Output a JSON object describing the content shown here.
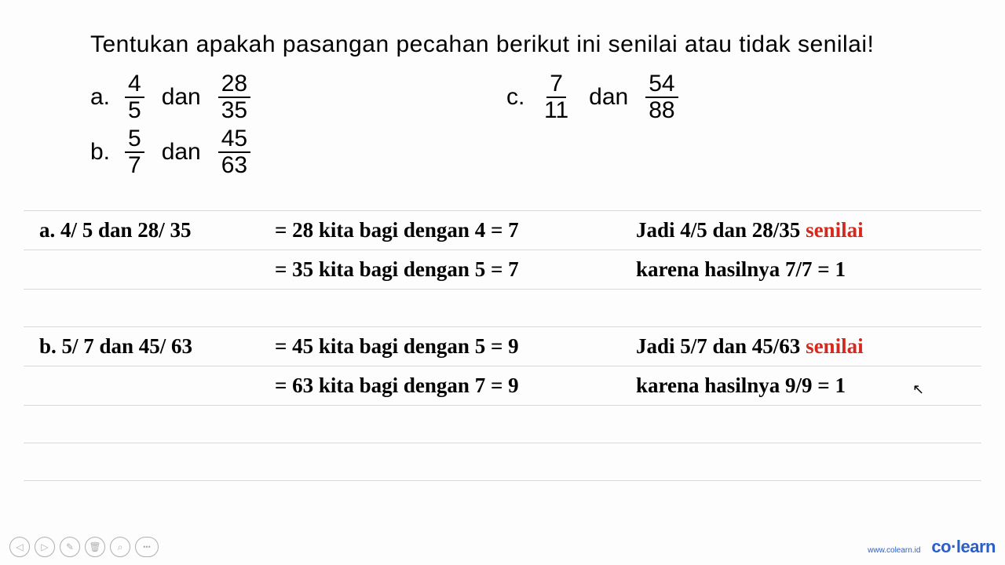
{
  "colors": {
    "text": "#000000",
    "highlight": "#d42a1e",
    "rule": "#d8d8d8",
    "brand": "#2a5fc9",
    "control": "#b0b0b0",
    "background": "#ffffff"
  },
  "typography": {
    "question_font": "Arial, sans-serif",
    "question_fontsize": 30,
    "solution_font": "Comic Sans MS, Segoe Script, cursive",
    "solution_fontsize": 27,
    "solution_weight": "bold"
  },
  "question": {
    "title": "Tentukan apakah pasangan pecahan berikut ini senilai atau tidak senilai!",
    "problems": {
      "a": {
        "label": "a.",
        "frac1": {
          "num": "4",
          "den": "5"
        },
        "dan": "dan",
        "frac2": {
          "num": "28",
          "den": "35"
        }
      },
      "b": {
        "label": "b.",
        "frac1": {
          "num": "5",
          "den": "7"
        },
        "dan": "dan",
        "frac2": {
          "num": "45",
          "den": "63"
        }
      },
      "c": {
        "label": "c.",
        "frac1": {
          "num": "7",
          "den": "11"
        },
        "dan": "dan",
        "frac2": {
          "num": "54",
          "den": "88"
        }
      }
    }
  },
  "solutions": {
    "a": {
      "left": "a. 4/ 5 dan 28/ 35",
      "line1": "= 28 kita bagi dengan 4 = 7",
      "line2": "= 35 kita bagi dengan 5 = 7",
      "right1_pre": "Jadi 4/5 dan 28/35 ",
      "right1_hl": "senilai",
      "right2": "karena hasilnya 7/7 = 1"
    },
    "b": {
      "left": "b. 5/ 7 dan 45/ 63",
      "line1": "= 45 kita bagi dengan 5 = 9",
      "line2": "= 63 kita bagi dengan 7 = 9",
      "right1_pre": "Jadi 5/7 dan 45/63 ",
      "right1_hl": "senilai",
      "right2": "karena hasilnya 9/9 = 1"
    }
  },
  "footer": {
    "url": "www.colearn.id",
    "brand_co": "co",
    "brand_dot": "·",
    "brand_learn": "learn"
  },
  "controls": {
    "back": "◁",
    "play": "▷",
    "edit": "✎",
    "trash": "🗑",
    "zoom": "⌕",
    "more": "•••"
  }
}
